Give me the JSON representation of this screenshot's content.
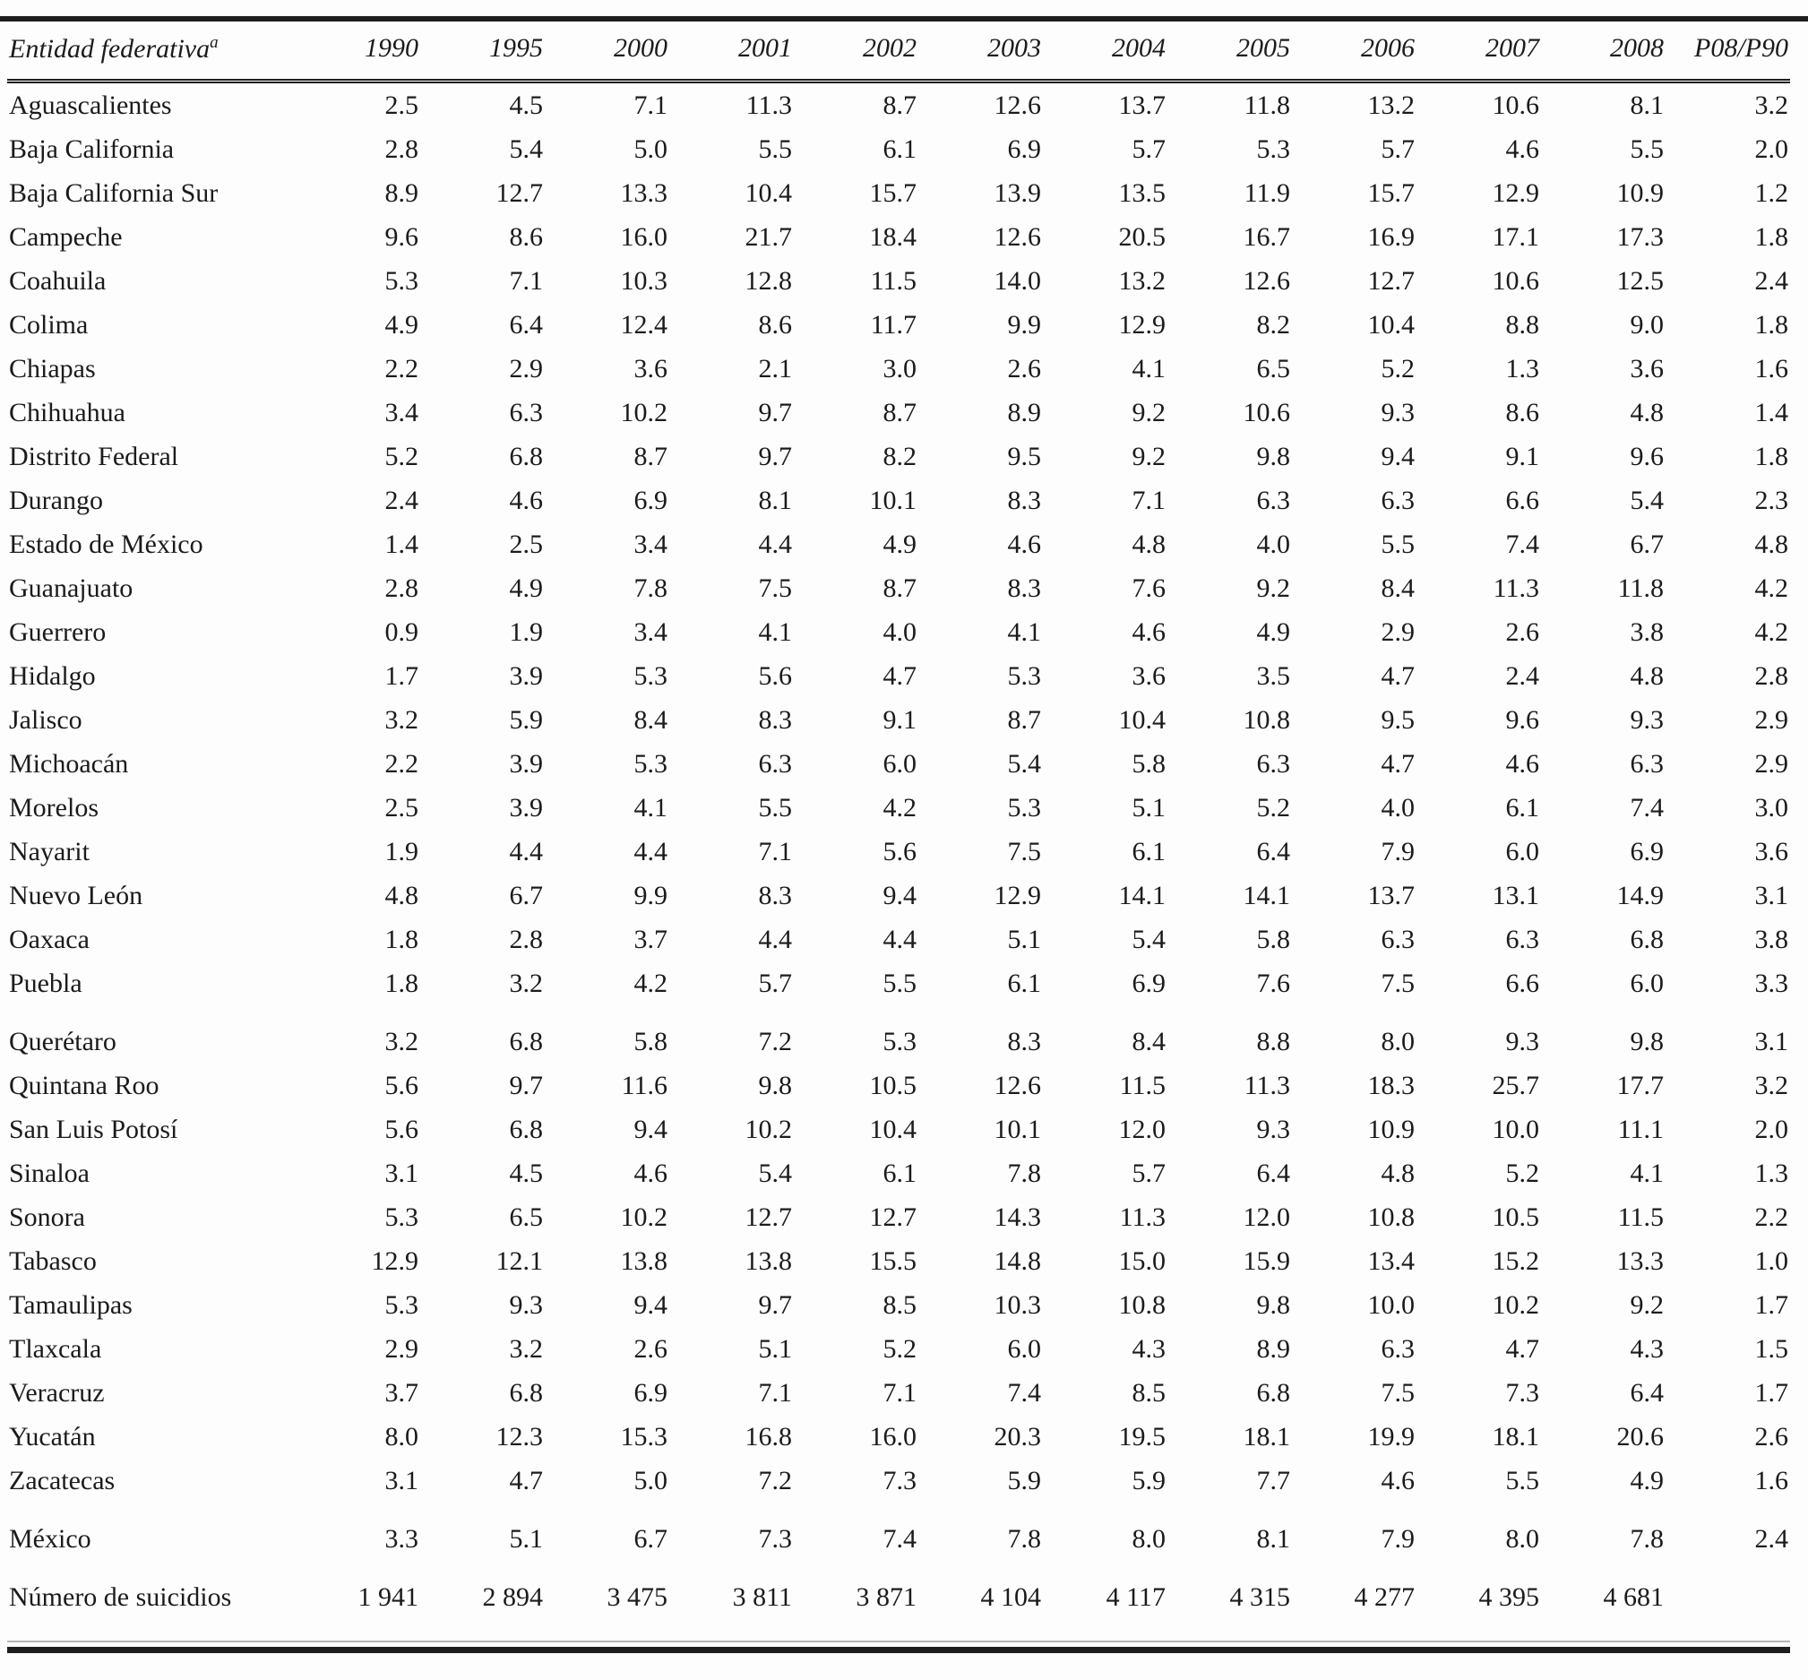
{
  "page": {
    "background_color": "#fdfdfd",
    "text_color": "#1b1b1b",
    "rule_color": "#1e1e1e"
  },
  "table": {
    "header": {
      "entity": "Entidad federativa",
      "entity_note": "a",
      "years": [
        "1990",
        "1995",
        "2000",
        "2001",
        "2002",
        "2003",
        "2004",
        "2005",
        "2006",
        "2007",
        "2008"
      ],
      "ratio": "P08/P90"
    },
    "rows": [
      {
        "label": "Aguascalientes",
        "values": [
          "2.5",
          "4.5",
          "7.1",
          "11.3",
          "8.7",
          "12.6",
          "13.7",
          "11.8",
          "13.2",
          "10.6",
          "8.1",
          "3.2"
        ]
      },
      {
        "label": "Baja California",
        "values": [
          "2.8",
          "5.4",
          "5.0",
          "5.5",
          "6.1",
          "6.9",
          "5.7",
          "5.3",
          "5.7",
          "4.6",
          "5.5",
          "2.0"
        ]
      },
      {
        "label": "Baja California Sur",
        "values": [
          "8.9",
          "12.7",
          "13.3",
          "10.4",
          "15.7",
          "13.9",
          "13.5",
          "11.9",
          "15.7",
          "12.9",
          "10.9",
          "1.2"
        ]
      },
      {
        "label": "Campeche",
        "values": [
          "9.6",
          "8.6",
          "16.0",
          "21.7",
          "18.4",
          "12.6",
          "20.5",
          "16.7",
          "16.9",
          "17.1",
          "17.3",
          "1.8"
        ]
      },
      {
        "label": "Coahuila",
        "values": [
          "5.3",
          "7.1",
          "10.3",
          "12.8",
          "11.5",
          "14.0",
          "13.2",
          "12.6",
          "12.7",
          "10.6",
          "12.5",
          "2.4"
        ]
      },
      {
        "label": "Colima",
        "values": [
          "4.9",
          "6.4",
          "12.4",
          "8.6",
          "11.7",
          "9.9",
          "12.9",
          "8.2",
          "10.4",
          "8.8",
          "9.0",
          "1.8"
        ]
      },
      {
        "label": "Chiapas",
        "values": [
          "2.2",
          "2.9",
          "3.6",
          "2.1",
          "3.0",
          "2.6",
          "4.1",
          "6.5",
          "5.2",
          "1.3",
          "3.6",
          "1.6"
        ]
      },
      {
        "label": "Chihuahua",
        "values": [
          "3.4",
          "6.3",
          "10.2",
          "9.7",
          "8.7",
          "8.9",
          "9.2",
          "10.6",
          "9.3",
          "8.6",
          "4.8",
          "1.4"
        ]
      },
      {
        "label": "Distrito Federal",
        "values": [
          "5.2",
          "6.8",
          "8.7",
          "9.7",
          "8.2",
          "9.5",
          "9.2",
          "9.8",
          "9.4",
          "9.1",
          "9.6",
          "1.8"
        ]
      },
      {
        "label": "Durango",
        "values": [
          "2.4",
          "4.6",
          "6.9",
          "8.1",
          "10.1",
          "8.3",
          "7.1",
          "6.3",
          "6.3",
          "6.6",
          "5.4",
          "2.3"
        ]
      },
      {
        "label": "Estado de México",
        "values": [
          "1.4",
          "2.5",
          "3.4",
          "4.4",
          "4.9",
          "4.6",
          "4.8",
          "4.0",
          "5.5",
          "7.4",
          "6.7",
          "4.8"
        ]
      },
      {
        "label": "Guanajuato",
        "values": [
          "2.8",
          "4.9",
          "7.8",
          "7.5",
          "8.7",
          "8.3",
          "7.6",
          "9.2",
          "8.4",
          "11.3",
          "11.8",
          "4.2"
        ]
      },
      {
        "label": "Guerrero",
        "values": [
          "0.9",
          "1.9",
          "3.4",
          "4.1",
          "4.0",
          "4.1",
          "4.6",
          "4.9",
          "2.9",
          "2.6",
          "3.8",
          "4.2"
        ]
      },
      {
        "label": "Hidalgo",
        "values": [
          "1.7",
          "3.9",
          "5.3",
          "5.6",
          "4.7",
          "5.3",
          "3.6",
          "3.5",
          "4.7",
          "2.4",
          "4.8",
          "2.8"
        ]
      },
      {
        "label": "Jalisco",
        "values": [
          "3.2",
          "5.9",
          "8.4",
          "8.3",
          "9.1",
          "8.7",
          "10.4",
          "10.8",
          "9.5",
          "9.6",
          "9.3",
          "2.9"
        ]
      },
      {
        "label": "Michoacán",
        "values": [
          "2.2",
          "3.9",
          "5.3",
          "6.3",
          "6.0",
          "5.4",
          "5.8",
          "6.3",
          "4.7",
          "4.6",
          "6.3",
          "2.9"
        ]
      },
      {
        "label": "Morelos",
        "values": [
          "2.5",
          "3.9",
          "4.1",
          "5.5",
          "4.2",
          "5.3",
          "5.1",
          "5.2",
          "4.0",
          "6.1",
          "7.4",
          "3.0"
        ]
      },
      {
        "label": "Nayarit",
        "values": [
          "1.9",
          "4.4",
          "4.4",
          "7.1",
          "5.6",
          "7.5",
          "6.1",
          "6.4",
          "7.9",
          "6.0",
          "6.9",
          "3.6"
        ]
      },
      {
        "label": "Nuevo León",
        "values": [
          "4.8",
          "6.7",
          "9.9",
          "8.3",
          "9.4",
          "12.9",
          "14.1",
          "14.1",
          "13.7",
          "13.1",
          "14.9",
          "3.1"
        ]
      },
      {
        "label": "Oaxaca",
        "values": [
          "1.8",
          "2.8",
          "3.7",
          "4.4",
          "4.4",
          "5.1",
          "5.4",
          "5.8",
          "6.3",
          "6.3",
          "6.8",
          "3.8"
        ]
      },
      {
        "label": "Puebla",
        "values": [
          "1.8",
          "3.2",
          "4.2",
          "5.7",
          "5.5",
          "6.1",
          "6.9",
          "7.6",
          "7.5",
          "6.6",
          "6.0",
          "3.3"
        ]
      },
      {
        "label": "Querétaro",
        "values": [
          "3.2",
          "6.8",
          "5.8",
          "7.2",
          "5.3",
          "8.3",
          "8.4",
          "8.8",
          "8.0",
          "9.3",
          "9.8",
          "3.1"
        ],
        "gap_before": true
      },
      {
        "label": "Quintana Roo",
        "values": [
          "5.6",
          "9.7",
          "11.6",
          "9.8",
          "10.5",
          "12.6",
          "11.5",
          "11.3",
          "18.3",
          "25.7",
          "17.7",
          "3.2"
        ]
      },
      {
        "label": "San Luis Potosí",
        "values": [
          "5.6",
          "6.8",
          "9.4",
          "10.2",
          "10.4",
          "10.1",
          "12.0",
          "9.3",
          "10.9",
          "10.0",
          "11.1",
          "2.0"
        ]
      },
      {
        "label": "Sinaloa",
        "values": [
          "3.1",
          "4.5",
          "4.6",
          "5.4",
          "6.1",
          "7.8",
          "5.7",
          "6.4",
          "4.8",
          "5.2",
          "4.1",
          "1.3"
        ]
      },
      {
        "label": "Sonora",
        "values": [
          "5.3",
          "6.5",
          "10.2",
          "12.7",
          "12.7",
          "14.3",
          "11.3",
          "12.0",
          "10.8",
          "10.5",
          "11.5",
          "2.2"
        ]
      },
      {
        "label": "Tabasco",
        "values": [
          "12.9",
          "12.1",
          "13.8",
          "13.8",
          "15.5",
          "14.8",
          "15.0",
          "15.9",
          "13.4",
          "15.2",
          "13.3",
          "1.0"
        ]
      },
      {
        "label": "Tamaulipas",
        "values": [
          "5.3",
          "9.3",
          "9.4",
          "9.7",
          "8.5",
          "10.3",
          "10.8",
          "9.8",
          "10.0",
          "10.2",
          "9.2",
          "1.7"
        ]
      },
      {
        "label": "Tlaxcala",
        "values": [
          "2.9",
          "3.2",
          "2.6",
          "5.1",
          "5.2",
          "6.0",
          "4.3",
          "8.9",
          "6.3",
          "4.7",
          "4.3",
          "1.5"
        ]
      },
      {
        "label": "Veracruz",
        "values": [
          "3.7",
          "6.8",
          "6.9",
          "7.1",
          "7.1",
          "7.4",
          "8.5",
          "6.8",
          "7.5",
          "7.3",
          "6.4",
          "1.7"
        ]
      },
      {
        "label": "Yucatán",
        "values": [
          "8.0",
          "12.3",
          "15.3",
          "16.8",
          "16.0",
          "20.3",
          "19.5",
          "18.1",
          "19.9",
          "18.1",
          "20.6",
          "2.6"
        ]
      },
      {
        "label": "Zacatecas",
        "values": [
          "3.1",
          "4.7",
          "5.0",
          "7.2",
          "7.3",
          "5.9",
          "5.9",
          "7.7",
          "4.6",
          "5.5",
          "4.9",
          "1.6"
        ]
      },
      {
        "label": "México",
        "values": [
          "3.3",
          "5.1",
          "6.7",
          "7.3",
          "7.4",
          "7.8",
          "8.0",
          "8.1",
          "7.9",
          "8.0",
          "7.8",
          "2.4"
        ],
        "gap_before": true
      },
      {
        "label": "Número de suicidios",
        "values": [
          "1 941",
          "2 894",
          "3 475",
          "3 811",
          "3 871",
          "4 104",
          "4 117",
          "4 315",
          "4 277",
          "4 395",
          "4 681",
          ""
        ],
        "gap_before": true
      }
    ]
  }
}
